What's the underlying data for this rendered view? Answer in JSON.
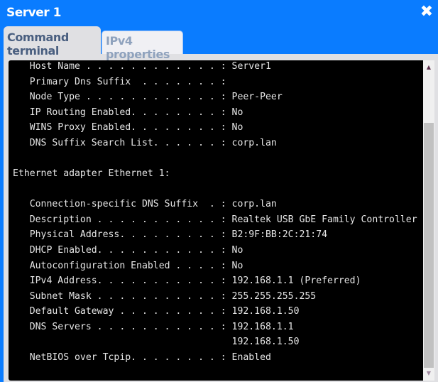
{
  "window": {
    "title": "Server 1",
    "close_icon": "close-x-icon"
  },
  "tabs": [
    {
      "label": "Command terminal",
      "active": true
    },
    {
      "label": "IPv4 properties",
      "active": false
    }
  ],
  "terminal": {
    "lines": [
      "   Host Name . . . . . . . . . . . . : Server1",
      "   Primary Dns Suffix  . . . . . . . : ",
      "   Node Type . . . . . . . . . . . . : Peer-Peer",
      "   IP Routing Enabled. . . . . . . . : No",
      "   WINS Proxy Enabled. . . . . . . . : No",
      "   DNS Suffix Search List. . . . . . : corp.lan",
      "",
      "Ethernet adapter Ethernet 1:",
      "",
      "   Connection-specific DNS Suffix  . : corp.lan",
      "   Description . . . . . . . . . . . : Realtek USB GbE Family Controller",
      "   Physical Address. . . . . . . . . : B2:9F:BB:2C:21:74",
      "   DHCP Enabled. . . . . . . . . . . : No",
      "   Autoconfiguration Enabled . . . . : No",
      "   IPv4 Address. . . . . . . . . . . : 192.168.1.1 (Preferred)",
      "   Subnet Mask . . . . . . . . . . . : 255.255.255.255",
      "   Default Gateway . . . . . . . . . : 192.168.1.50",
      "   DNS Servers . . . . . . . . . . . : 192.168.1.1",
      "                                       192.168.1.50",
      "   NetBIOS over Tcpip. . . . . . . . : Enabled"
    ]
  },
  "scrollbar": {
    "up_icon": "scroll-up-arrow-icon",
    "down_icon": "scroll-down-arrow-icon"
  }
}
